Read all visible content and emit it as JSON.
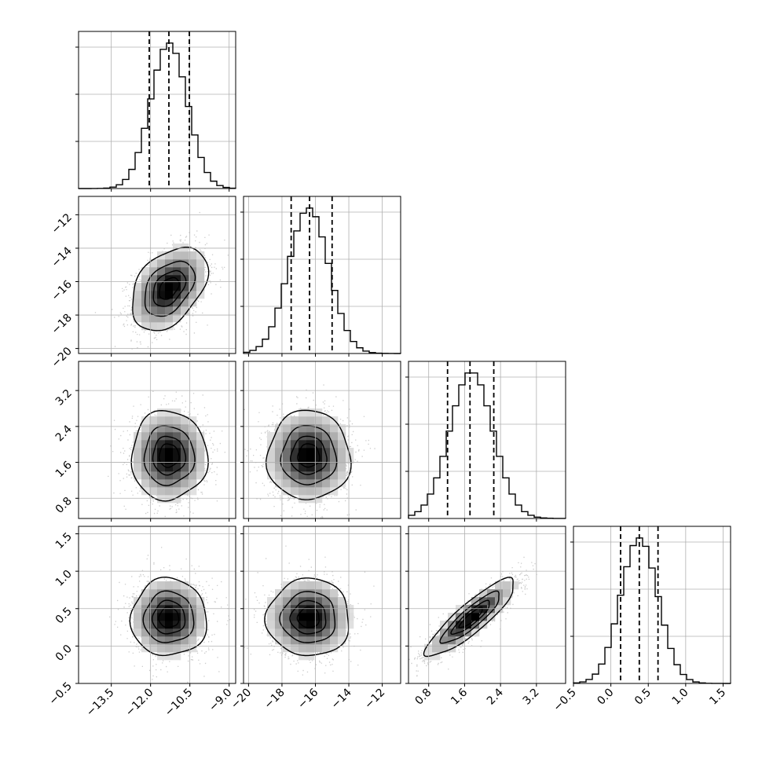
{
  "chart_data": {
    "type": "corner",
    "title": "",
    "parameters": [
      {
        "mean": -11.3,
        "sd": 0.7,
        "range": [
          -14.75,
          -8.75
        ],
        "ticks": [
          -13.5,
          -12.0,
          -10.5,
          -9.0
        ],
        "tick_labels": [
          "−13.5",
          "−12.0",
          "−10.5",
          "−9.0"
        ],
        "quantiles": [
          -12.05,
          -11.3,
          -10.52
        ]
      },
      {
        "mean": -16.4,
        "sd": 1.2,
        "range": [
          -20.3,
          -10.9
        ],
        "ticks": [
          -20,
          -18,
          -16,
          -14,
          -12
        ],
        "tick_labels": [
          "−20",
          "−18",
          "−16",
          "−14",
          "−12"
        ],
        "quantiles": [
          -17.45,
          -16.35,
          -15.0
        ]
      },
      {
        "mean": 1.75,
        "sd": 0.48,
        "range": [
          0.35,
          3.85
        ],
        "ticks": [
          0.8,
          1.6,
          2.4,
          3.2
        ],
        "tick_labels": [
          "0.8",
          "1.6",
          "2.4",
          "3.2"
        ],
        "quantiles": [
          1.22,
          1.72,
          2.25
        ]
      },
      {
        "mean": 0.38,
        "sd": 0.25,
        "range": [
          -0.5,
          1.6
        ],
        "ticks": [
          -0.5,
          0.0,
          0.5,
          1.0,
          1.5
        ],
        "tick_labels": [
          "−0.5",
          "0.0",
          "0.5",
          "1.0",
          "1.5"
        ],
        "quantiles": [
          0.13,
          0.38,
          0.63
        ]
      }
    ],
    "correlations": {
      "1-0": 0.4,
      "2-0": 0.0,
      "2-1": 0.0,
      "3-0": 0.0,
      "3-1": 0.0,
      "3-2": 0.88
    },
    "histogram_bins": 25,
    "grid": true,
    "contour_levels_sigma": [
      0.5,
      1.0,
      1.5,
      2.0
    ]
  }
}
